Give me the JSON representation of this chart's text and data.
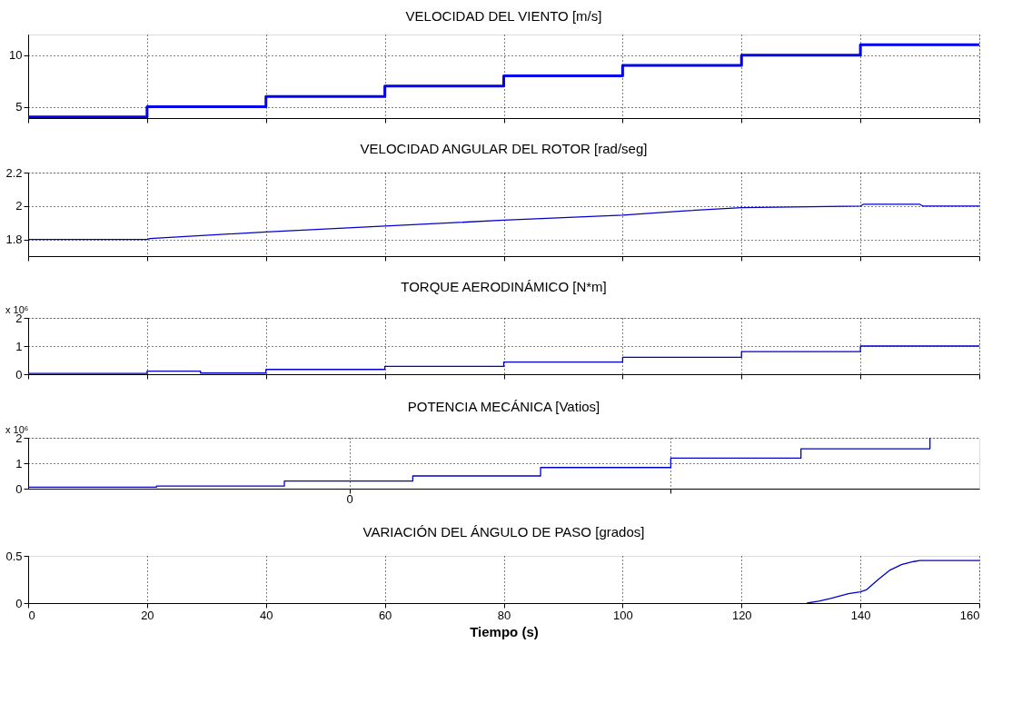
{
  "chart_data": [
    {
      "type": "step",
      "title": "VELOCIDAD DEL VIENTO [m/s]",
      "x": [
        0,
        20,
        40,
        60,
        80,
        100,
        120,
        140,
        160
      ],
      "series": [
        {
          "color": "#0000ee",
          "values": [
            4,
            5,
            6,
            7,
            8,
            9,
            10,
            11,
            11
          ]
        }
      ],
      "xlim": [
        0,
        160
      ],
      "xticks": [
        0,
        20,
        40,
        60,
        80,
        100,
        120,
        140,
        160
      ],
      "ylim": [
        3.9,
        12
      ],
      "yticks": [
        5,
        10
      ],
      "grid": true,
      "tick_labels": "y"
    },
    {
      "type": "line",
      "title": "VELOCIDAD ANGULAR DEL ROTOR [rad/seg]",
      "x": [
        0,
        20,
        20.5,
        40,
        60,
        80,
        100,
        110,
        120,
        140,
        140.5,
        150,
        150.5,
        160
      ],
      "series": [
        {
          "color": "#0000cc",
          "values": [
            1.8,
            1.8,
            1.805,
            1.845,
            1.88,
            1.915,
            1.945,
            1.97,
            1.99,
            2.0,
            2.01,
            2.01,
            2.0,
            2.0
          ]
        }
      ],
      "xlim": [
        0,
        160
      ],
      "xticks": [
        0,
        20,
        40,
        60,
        80,
        100,
        120,
        140,
        160
      ],
      "ylim": [
        1.7,
        2.2
      ],
      "yticks": [
        1.8,
        2,
        2.2
      ],
      "grid": true,
      "tick_labels": "y"
    },
    {
      "type": "step",
      "title": "TORQUE AERODINÁMICO [N*m]",
      "annotations": [
        "x 10⁶"
      ],
      "x": [
        0,
        20,
        29,
        40,
        60,
        80,
        100,
        120,
        140,
        160
      ],
      "series": [
        {
          "color": "#0000cc",
          "values": [
            0.03,
            0.11,
            0.04,
            0.17,
            0.28,
            0.43,
            0.6,
            0.8,
            1.0,
            1.0
          ]
        }
      ],
      "xlim": [
        0,
        160
      ],
      "xticks": [
        0,
        20,
        40,
        60,
        80,
        100,
        120,
        140,
        160
      ],
      "ylim": [
        0,
        2
      ],
      "yticks": [
        0,
        1,
        2
      ],
      "grid": true,
      "tick_labels": "y"
    },
    {
      "type": "step",
      "title": "POTENCIA MECÁNICA [Vatios]",
      "annotations": [
        "x 10⁶",
        "0"
      ],
      "x": [
        0,
        21.6,
        43.1,
        64.7,
        86.2,
        108.1,
        130,
        151.7
      ],
      "series": [
        {
          "color": "#0000cc",
          "values": [
            0.06,
            0.1,
            0.3,
            0.5,
            0.83,
            1.2,
            1.57,
            2.0
          ]
        }
      ],
      "xlim": [
        0,
        160
      ],
      "xticks": [
        {
          "value": 54.1,
          "label": null
        },
        {
          "value": 108.1,
          "label": null
        }
      ],
      "ylim": [
        0,
        2
      ],
      "yticks": [
        0,
        1,
        2
      ],
      "grid": true,
      "tick_labels": "y"
    },
    {
      "type": "line",
      "title": "VARIACIÓN DEL ÁNGULO DE PASO [grados]",
      "xlabel": "Tiempo (s)",
      "x": [
        131,
        133,
        135,
        138,
        140,
        141,
        143,
        145,
        147,
        149,
        150,
        152,
        160
      ],
      "series": [
        {
          "color": "#0000cc",
          "values": [
            0,
            0.02,
            0.05,
            0.1,
            0.12,
            0.14,
            0.25,
            0.35,
            0.41,
            0.44,
            0.45,
            0.45,
            0.45
          ]
        }
      ],
      "xlim": [
        0,
        160
      ],
      "xticks": [
        0,
        20,
        40,
        60,
        80,
        100,
        120,
        140,
        160
      ],
      "ylim": [
        0,
        0.5
      ],
      "yticks": [
        0,
        0.5
      ],
      "grid": "x"
    }
  ]
}
